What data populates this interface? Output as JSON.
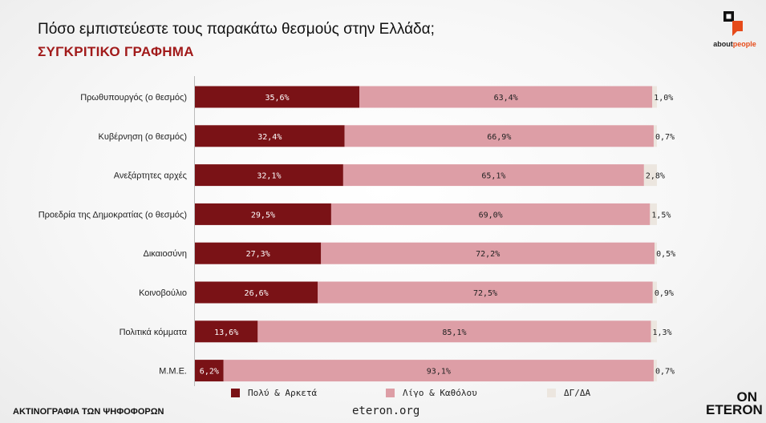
{
  "header": {
    "title": "Πόσο εμπιστεύεστε τους παρακάτω θεσμούς στην Ελλάδα;",
    "subtitle": "ΣΥΓΚΡΙΤΙΚΟ ΓΡΑΦΗΜΑ"
  },
  "brand": {
    "about_prefix": "about",
    "about_suffix": "people",
    "eteron_line1": "ON",
    "eteron_line2": "ETERON"
  },
  "footer": {
    "left_text": "ΑΚΤΙΝΟΓΡΑΦΙΑ ΤΩΝ ΨΗΦΟΦΟΡΩΝ",
    "url": "eteron.org"
  },
  "colors": {
    "dark": "#7a1216",
    "pink": "#dd9ea6",
    "beige": "#ece6df",
    "title_accent": "#a11a1a",
    "brand_orange": "#e64b1a"
  },
  "chart_data": {
    "type": "bar",
    "orientation": "horizontal",
    "stacked": true,
    "categories": [
      "Πρωθυπουργός (ο θεσμός)",
      "Κυβέρνηση (ο θεσμός)",
      "Ανεξάρτητες αρχές",
      "Προεδρία της Δημοκρατίας (ο θεσμός)",
      "Δικαιοσύνη",
      "Κοινοβούλιο",
      "Πολιτικά κόμματα",
      "Μ.Μ.Ε."
    ],
    "series": [
      {
        "name": "Πολύ & Αρκετά",
        "color": "#7a1216",
        "values": [
          35.6,
          32.4,
          32.1,
          29.5,
          27.3,
          26.6,
          13.6,
          6.2
        ],
        "labels": [
          "35,6%",
          "32,4%",
          "32,1%",
          "29,5%",
          "27,3%",
          "26,6%",
          "13,6%",
          "6,2%"
        ]
      },
      {
        "name": "Λίγο & Καθόλου",
        "color": "#dd9ea6",
        "values": [
          63.4,
          66.9,
          65.1,
          69.0,
          72.2,
          72.5,
          85.1,
          93.1
        ],
        "labels": [
          "63,4%",
          "66,9%",
          "65,1%",
          "69,0%",
          "72,2%",
          "72,5%",
          "85,1%",
          "93,1%"
        ]
      },
      {
        "name": "ΔΓ/ΔΑ",
        "color": "#ece6df",
        "values": [
          1.0,
          0.7,
          2.8,
          1.5,
          0.5,
          0.9,
          1.3,
          0.7
        ],
        "labels": [
          "1,0%",
          "0,7%",
          "2,8%",
          "1,5%",
          "0,5%",
          "0,9%",
          "1,3%",
          "0,7%"
        ]
      }
    ],
    "xlim": [
      0,
      100
    ],
    "legend_position": "bottom",
    "grid": false
  }
}
